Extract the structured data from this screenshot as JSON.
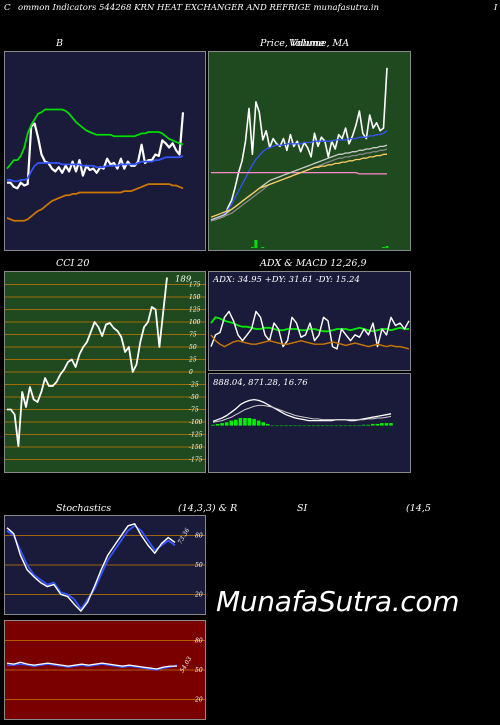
{
  "header": {
    "left_char": "C",
    "text": "ommon  Indicators 544268 KRN  HEAT EXCHANGER AND REFRIGE munafasutra.in",
    "right_char": "I"
  },
  "watermark": "MunafaSutra.com",
  "colors": {
    "bb_bg": "#1a1a3a",
    "price_bg": "#1f4a1f",
    "cci_bg": "#1f4a1f",
    "adx_bg": "#1a1a3a",
    "stoch_bg": "#1a1a3a",
    "rsi_bg": "#7a0000",
    "grid_orange": "#c87a00"
  },
  "chart_data": [
    {
      "id": "bollinger",
      "type": "line",
      "title": "B",
      "series": [
        {
          "color": "#ffffff",
          "values": [
            20,
            20,
            17,
            16,
            20,
            18,
            19,
            60,
            62,
            52,
            40,
            35,
            34,
            30,
            28,
            31,
            27,
            32,
            28,
            35,
            28,
            36,
            25,
            32,
            29,
            30,
            27,
            31,
            30,
            37,
            33,
            34,
            30,
            37,
            30,
            35,
            32,
            32,
            35,
            47,
            34,
            36,
            36,
            40,
            39,
            50,
            48,
            45,
            48,
            43,
            40,
            70
          ]
        },
        {
          "color": "#00dd00",
          "values": [
            30,
            33,
            36,
            36,
            39,
            45,
            55,
            61,
            65,
            69,
            70,
            72,
            72,
            72,
            72,
            72,
            72,
            71,
            69,
            66,
            63,
            61,
            59,
            57,
            56,
            55,
            54,
            54,
            54,
            54,
            54,
            53,
            53,
            53,
            53,
            53,
            53,
            53,
            54,
            55,
            55,
            56,
            56,
            56,
            56,
            55,
            53,
            51,
            50,
            49,
            48,
            47
          ]
        },
        {
          "color": "#3355ff",
          "values": [
            22,
            22,
            21,
            21,
            22,
            22,
            23,
            28,
            32,
            34,
            34,
            34,
            34,
            34,
            34,
            34,
            33,
            33,
            33,
            33,
            33,
            33,
            32,
            32,
            32,
            32,
            31,
            31,
            31,
            32,
            32,
            32,
            32,
            33,
            33,
            33,
            33,
            33,
            34,
            35,
            35,
            35,
            35,
            36,
            36,
            37,
            38,
            38,
            38,
            38,
            38,
            39
          ]
        },
        {
          "color": "#cc7700",
          "values": [
            -5,
            -6,
            -7,
            -7,
            -7,
            -7,
            -6,
            -4,
            -2,
            0,
            1,
            3,
            5,
            7,
            8,
            9,
            10,
            11,
            11,
            12,
            12,
            13,
            13,
            13,
            13,
            13,
            13,
            13,
            13,
            13,
            13,
            13,
            13,
            13,
            14,
            14,
            14,
            15,
            16,
            17,
            18,
            19,
            19,
            19,
            19,
            19,
            19,
            19,
            18,
            18,
            17,
            16
          ]
        }
      ],
      "ylim": [
        -25,
        110
      ]
    },
    {
      "id": "price_ma",
      "type": "line",
      "title": "Price,  Volume, MA",
      "subtitle_overlay": "Volume",
      "series": [
        {
          "color": "#ffffff",
          "values": [
            10,
            10,
            11,
            12,
            13,
            20,
            25,
            35,
            46,
            55,
            70,
            95,
            60,
            100,
            92,
            71,
            78,
            65,
            72,
            68,
            66,
            72,
            63,
            75,
            66,
            70,
            62,
            69,
            65,
            58,
            76,
            66,
            73,
            70,
            58,
            70,
            64,
            75,
            72,
            80,
            68,
            74,
            82,
            93,
            76,
            72,
            90,
            80,
            84,
            78,
            80,
            126
          ]
        },
        {
          "color": "#3355ff",
          "values": [
            10,
            11,
            12,
            13,
            15,
            18,
            22,
            27,
            32,
            37,
            42,
            47,
            52,
            56,
            59,
            62,
            64,
            65,
            66,
            67,
            67,
            67,
            68,
            68,
            68,
            68,
            68,
            69,
            69,
            69,
            70,
            70,
            70,
            70,
            70,
            70,
            71,
            71,
            71,
            71,
            72,
            72,
            72,
            73,
            73,
            73,
            74,
            74,
            75,
            75,
            76,
            78
          ]
        },
        {
          "color": "#ff88cc",
          "values": [
            46,
            46,
            46,
            46,
            46,
            46,
            46,
            46,
            46,
            46,
            46,
            46,
            46,
            46,
            46,
            46,
            46,
            46,
            46,
            46,
            46,
            46,
            46,
            46,
            46,
            46,
            46,
            46,
            46,
            46,
            46,
            46,
            46,
            46,
            46,
            46,
            46,
            46,
            46,
            46,
            46,
            46,
            46,
            45,
            45,
            45,
            45,
            45,
            45,
            45,
            45,
            45
          ]
        },
        {
          "color": "#cccccc",
          "values": [
            10,
            11,
            12,
            13,
            14,
            16,
            18,
            20,
            22,
            24,
            26,
            28,
            30,
            32,
            34,
            36,
            38,
            40,
            41,
            42,
            43,
            44,
            45,
            46,
            47,
            48,
            49,
            50,
            51,
            52,
            53,
            54,
            55,
            56,
            57,
            58,
            59,
            60,
            60,
            61,
            61,
            62,
            62,
            63,
            63,
            64,
            64,
            65,
            65,
            66,
            66,
            67
          ]
        },
        {
          "color": "#888888",
          "values": [
            9,
            10,
            11,
            12,
            13,
            14,
            15,
            17,
            19,
            21,
            23,
            25,
            27,
            29,
            31,
            33,
            35,
            37,
            38,
            39,
            40,
            41,
            42,
            43,
            44,
            45,
            46,
            47,
            48,
            49,
            50,
            51,
            52,
            53,
            54,
            55,
            56,
            57,
            57,
            58,
            58,
            59,
            59,
            60,
            60,
            61,
            61,
            62,
            62,
            63,
            63,
            64
          ]
        },
        {
          "color": "#ffcc66",
          "values": [
            12,
            13,
            14,
            15,
            16,
            17,
            18,
            20,
            22,
            24,
            26,
            28,
            30,
            32,
            34,
            35,
            36,
            37,
            38,
            39,
            40,
            41,
            42,
            43,
            44,
            45,
            46,
            47,
            48,
            49,
            50,
            50,
            51,
            51,
            52,
            52,
            53,
            53,
            54,
            54,
            55,
            55,
            56,
            56,
            57,
            57,
            58,
            58,
            59,
            59,
            60,
            60
          ]
        }
      ],
      "volume": [
        0,
        0,
        0,
        0,
        0,
        0,
        0,
        0,
        0,
        0,
        0,
        0,
        1,
        8,
        0,
        1,
        0,
        0,
        0,
        0,
        0,
        0,
        0,
        0,
        0,
        0,
        0,
        0,
        0,
        0,
        0,
        0,
        0,
        0,
        0,
        0,
        0,
        0,
        0,
        0,
        0,
        0,
        0,
        0,
        0,
        0,
        0,
        0,
        0,
        0,
        1,
        2
      ],
      "ylim": [
        -10,
        135
      ]
    },
    {
      "id": "cci",
      "type": "line",
      "title": "CCI 20",
      "value_label": "189",
      "ticks": [
        "175",
        "150",
        "125",
        "100",
        "75",
        "50",
        "25",
        "0",
        "-25",
        "-50",
        "-75",
        "-100",
        "-125",
        "-150",
        "-175"
      ],
      "tick_values": [
        175,
        150,
        125,
        100,
        75,
        50,
        25,
        0,
        -25,
        -50,
        -75,
        -100,
        -125,
        -150,
        -175
      ],
      "series": [
        {
          "color": "#ffffff",
          "values": [
            -75,
            -75,
            -85,
            -148,
            -40,
            -70,
            -30,
            -55,
            -60,
            -40,
            -12,
            -28,
            -28,
            -20,
            -5,
            5,
            20,
            25,
            10,
            35,
            50,
            60,
            80,
            100,
            90,
            72,
            95,
            98,
            88,
            82,
            70,
            40,
            50,
            0,
            15,
            60,
            90,
            100,
            130,
            125,
            50,
            120,
            189
          ]
        }
      ],
      "ylim": [
        -200,
        200
      ]
    },
    {
      "id": "adx",
      "type": "line",
      "title": "ADX  & MACD 12,26,9",
      "label": "ADX: 34.95  +DY: 31.61  -DY: 15.24",
      "series": [
        {
          "color": "#00ee00",
          "values": [
            40,
            45,
            44,
            42,
            41,
            40,
            38,
            37,
            37,
            36,
            35,
            35,
            36,
            36,
            35,
            34,
            34,
            35,
            35,
            35,
            34,
            34,
            35,
            35,
            34,
            33,
            33,
            34,
            35,
            35,
            35,
            34,
            35,
            36,
            35,
            34,
            33,
            34,
            35,
            35,
            34,
            35,
            36,
            35,
            35
          ]
        },
        {
          "color": "#ffffff",
          "values": [
            20,
            30,
            32,
            45,
            50,
            42,
            30,
            25,
            30,
            35,
            50,
            45,
            30,
            25,
            40,
            35,
            20,
            25,
            45,
            40,
            28,
            30,
            40,
            25,
            30,
            45,
            42,
            20,
            18,
            35,
            30,
            25,
            30,
            28,
            35,
            30,
            40,
            20,
            35,
            30,
            45,
            38,
            40,
            35,
            42
          ]
        },
        {
          "color": "#cc7700",
          "values": [
            30,
            25,
            22,
            20,
            22,
            24,
            25,
            24,
            23,
            22,
            22,
            23,
            24,
            25,
            24,
            23,
            22,
            22,
            23,
            24,
            25,
            24,
            23,
            22,
            22,
            22,
            23,
            24,
            23,
            22,
            21,
            22,
            23,
            22,
            21,
            20,
            21,
            22,
            21,
            20,
            21,
            20,
            20,
            19,
            18
          ]
        }
      ],
      "ylim": [
        0,
        70
      ]
    },
    {
      "id": "macd",
      "type": "line",
      "label": "888.04,  871.28,  16.76",
      "series": [
        {
          "color": "#ffffff",
          "values": [
            5,
            7,
            9,
            12,
            16,
            20,
            25,
            28,
            30,
            31,
            30,
            28,
            25,
            22,
            19,
            16,
            13,
            11,
            9,
            8,
            7,
            6,
            6,
            6,
            6,
            6,
            6,
            7,
            7,
            7,
            6,
            6,
            7,
            8,
            9,
            10,
            11,
            12,
            13,
            14
          ]
        },
        {
          "color": "#cccccc",
          "values": [
            4,
            5,
            6,
            8,
            10,
            13,
            16,
            19,
            21,
            23,
            24,
            24,
            23,
            22,
            20,
            18,
            16,
            14,
            12,
            11,
            10,
            9,
            8,
            8,
            7,
            7,
            7,
            7,
            7,
            7,
            7,
            7,
            7,
            7,
            8,
            8,
            9,
            9,
            10,
            11
          ]
        }
      ],
      "histogram": [
        1,
        2,
        3,
        4,
        6,
        7,
        9,
        9,
        9,
        8,
        6,
        4,
        2,
        0,
        0,
        0,
        0,
        0,
        0,
        0,
        0,
        0,
        0,
        0,
        0,
        0,
        0,
        0,
        0,
        0,
        0,
        0,
        0,
        1,
        1,
        2,
        2,
        3,
        3,
        3
      ],
      "ylim": [
        -10,
        40
      ]
    },
    {
      "id": "stochastics",
      "type": "line",
      "title_left": "Stochastics",
      "title_mid": "(14,3,3) & R",
      "title_si": "SI",
      "title_right": "(14,5",
      "value_label": "73.36",
      "ticks": [
        "80",
        "50",
        "20"
      ],
      "tick_values": [
        80,
        50,
        20
      ],
      "series": [
        {
          "color": "#3355ff",
          "values": [
            85,
            80,
            65,
            50,
            40,
            35,
            30,
            32,
            22,
            20,
            15,
            5,
            15,
            25,
            40,
            55,
            65,
            75,
            85,
            90,
            85,
            75,
            65,
            70,
            75,
            70
          ]
        },
        {
          "color": "#ffffff",
          "values": [
            88,
            82,
            60,
            45,
            38,
            32,
            28,
            30,
            20,
            18,
            10,
            3,
            12,
            28,
            45,
            60,
            70,
            80,
            90,
            92,
            80,
            70,
            62,
            72,
            78,
            73
          ]
        }
      ],
      "ylim": [
        0,
        100
      ]
    },
    {
      "id": "rsi",
      "type": "line",
      "value_label": "54.03",
      "ticks": [
        "80",
        "50",
        "20"
      ],
      "tick_values": [
        80,
        50,
        20
      ],
      "series": [
        {
          "color": "#3355ff",
          "values": [
            55,
            55,
            56,
            55,
            54,
            55,
            56,
            55,
            54,
            53,
            54,
            55,
            54,
            55,
            56,
            55,
            54,
            53,
            54,
            53,
            52,
            51,
            50,
            52,
            53,
            55
          ]
        },
        {
          "color": "#ffffff",
          "values": [
            57,
            56,
            58,
            56,
            55,
            56,
            57,
            56,
            55,
            54,
            55,
            56,
            55,
            56,
            57,
            56,
            55,
            54,
            55,
            54,
            53,
            52,
            51,
            53,
            54,
            54
          ]
        }
      ],
      "ylim": [
        0,
        100
      ]
    }
  ]
}
